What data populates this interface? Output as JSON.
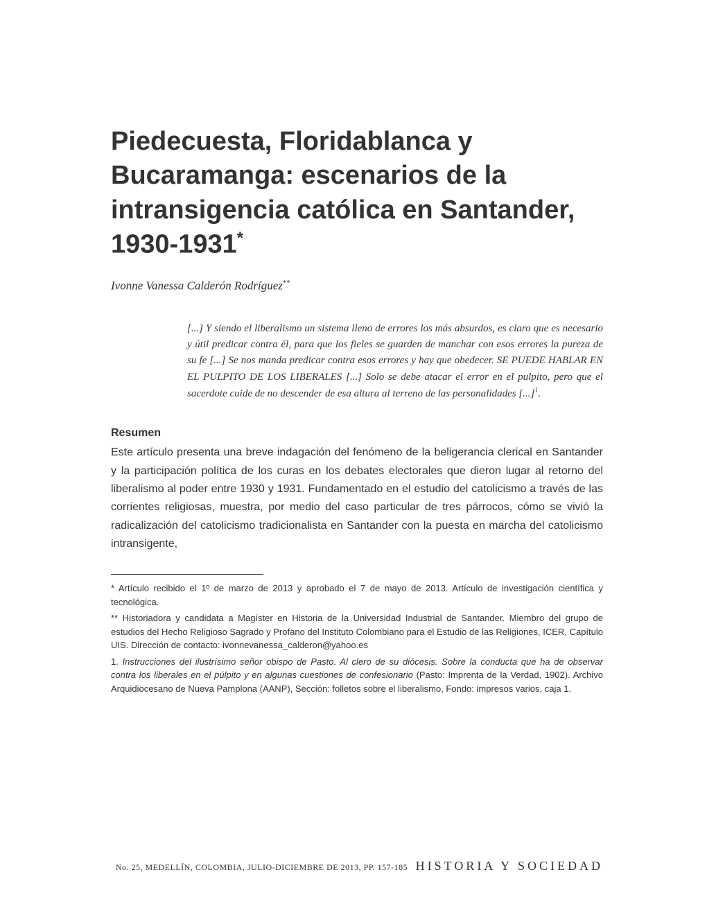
{
  "title": "Piedecuesta, Floridablanca y Bucaramanga: escenarios de la intransigencia católica en Santander, 1930-1931",
  "title_marker": "*",
  "author": "Ivonne Vanessa Calderón Rodríguez",
  "author_marker": "**",
  "epigraph": "[...] Y siendo el liberalismo un sistema lleno de errores los más absurdos, es claro que es necesario y útil predicar contra él, para que los fieles se guarden de manchar con esos errores la pureza de su fe [...] Se nos manda predicar contra esos errores y hay que obedecer. SE PUEDE HABLAR EN EL PULPITO DE LOS LIBERALES [...] Solo se debe atacar el error en el pulpito, pero que el sacerdote cuide de no descender de esa altura al terreno de las personalidades [...]",
  "epigraph_note_marker": "1",
  "epigraph_end": ".",
  "abstract_heading": "Resumen",
  "abstract": "Este artículo presenta una breve indagación del fenómeno de la beligerancia clerical en Santander y la participación política de los curas en los debates electorales que dieron lugar al retorno del liberalismo al poder entre 1930 y 1931. Fundamentado en el estudio del catolicismo a través de las corrientes religiosas, muestra, por medio del caso particular de tres párrocos, cómo se vivió la radicalización del catolicismo tradicionalista en Santander con la puesta en marcha del catolicismo intransigente,",
  "footnotes": {
    "fn1": "* Artículo recibido el 1º de marzo de 2013 y aprobado el 7 de mayo de 2013. Artículo de investigación científica y tecnológica.",
    "fn2": "** Historiadora y candidata a Magíster en Historia de la Universidad Industrial de Santander. Miembro del grupo de estudios del Hecho Religioso Sagrado y Profano del Instituto Colombiano para el Estudio de las Religiones, ICER, Capítulo UIS. Dirección de contacto: ivonnevanessa_calderon@yahoo.es",
    "fn3_prefix": "1. ",
    "fn3_italic": "Instrucciones del ilustrísimo señor obispo de Pasto. Al clero de su diócesis. Sobre la conducta que ha de observar contra los liberales en el púlpito y en algunas cuestiones de confesionario",
    "fn3_rest": " (Pasto: Imprenta de la Verdad, 1902). Archivo Arquidiocesano de Nueva Pamplona (AANP), Sección: folletos sobre el liberalismo, Fondo: impresos varios, caja 1."
  },
  "footer": {
    "issue": "No. 25, MEDELLÍN, COLOMBIA, JULIO-DICIEMBRE DE 2013, PP. 157-185",
    "journal": "HISTORIA Y SOCIEDAD"
  },
  "colors": {
    "text": "#333333",
    "background": "#ffffff"
  },
  "typography": {
    "title_fontsize": 38,
    "author_fontsize": 17,
    "epigraph_fontsize": 15,
    "abstract_fontsize": 16,
    "footnote_fontsize": 13,
    "footer_fontsize": 12,
    "journal_fontsize": 18
  }
}
